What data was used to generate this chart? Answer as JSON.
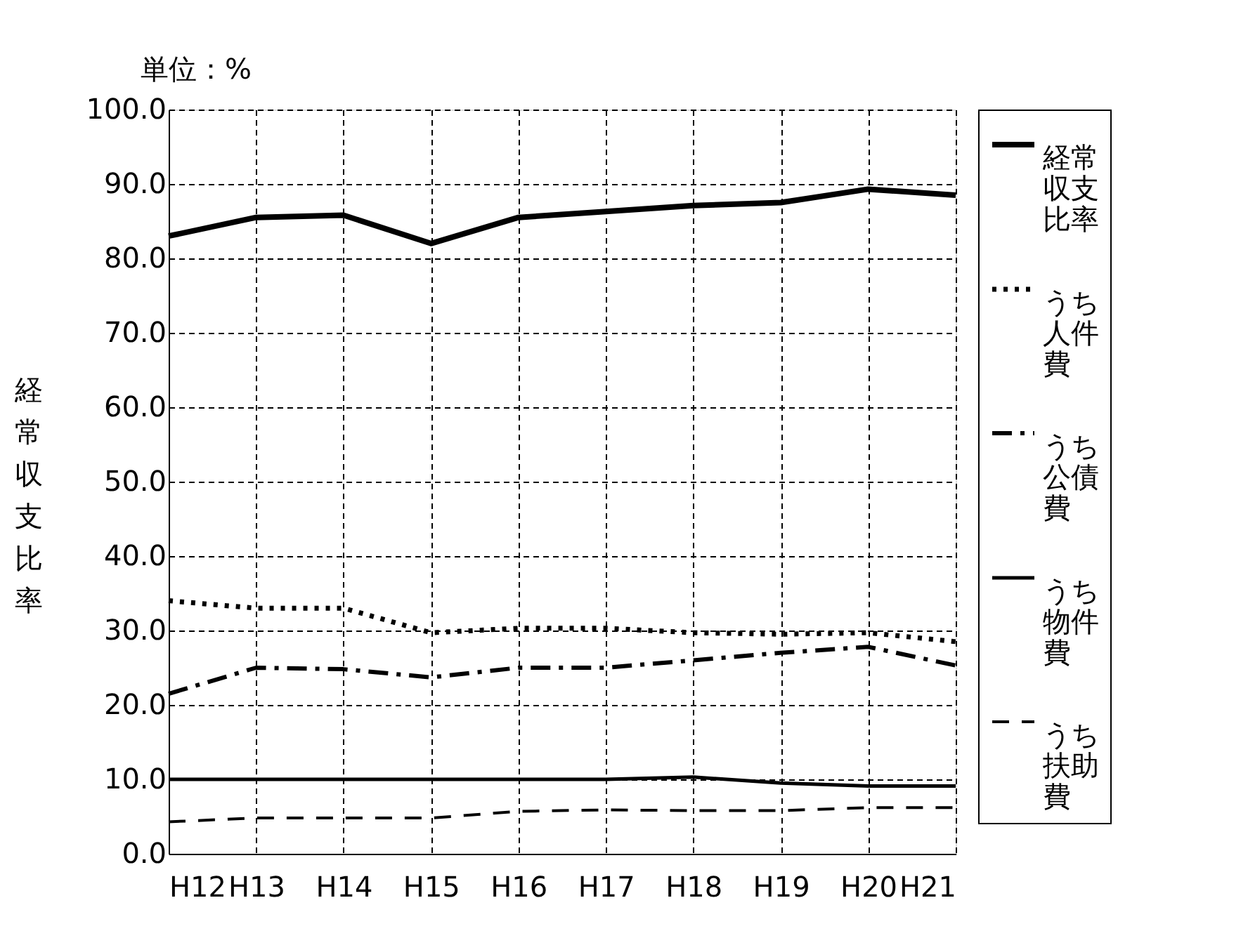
{
  "chart_data": {
    "type": "line",
    "ylabel": "経常収支比率",
    "annotations": [
      "単位：%"
    ],
    "categories": [
      "H12",
      "H13",
      "H14",
      "H15",
      "H16",
      "H17",
      "H18",
      "H19",
      "H20",
      "H21"
    ],
    "series": [
      {
        "name": "経常収支比率",
        "color": "#000000",
        "line_style": "solid",
        "values": [
          83.0,
          85.5,
          85.8,
          82.0,
          85.5,
          86.3,
          87.1,
          87.5,
          89.3,
          88.5
        ]
      },
      {
        "name": "うち人件費",
        "color": "#000000",
        "line_style": "dotted",
        "values": [
          34.0,
          33.0,
          33.0,
          29.7,
          30.3,
          30.3,
          29.7,
          29.5,
          29.7,
          28.5
        ]
      },
      {
        "name": "うち公債費",
        "color": "#000000",
        "line_style": "dashdot",
        "values": [
          21.5,
          25.0,
          24.8,
          23.7,
          25.0,
          25.0,
          26.0,
          27.0,
          27.8,
          25.3
        ]
      },
      {
        "name": "うち物件費",
        "color": "#000000",
        "line_style": "solid",
        "values": [
          10.0,
          10.0,
          10.0,
          10.0,
          10.0,
          10.0,
          10.3,
          9.5,
          9.1,
          9.1
        ]
      },
      {
        "name": "うち扶助費",
        "color": "#000000",
        "line_style": "dashed",
        "values": [
          4.3,
          4.8,
          4.8,
          4.8,
          5.7,
          5.9,
          5.8,
          5.8,
          6.2,
          6.2
        ]
      }
    ],
    "ylim": [
      0,
      100
    ],
    "yticks": [
      {
        "value": 0,
        "label": "0.0"
      },
      {
        "value": 10,
        "label": "10.0"
      },
      {
        "value": 20,
        "label": "20.0"
      },
      {
        "value": 30,
        "label": "30.0"
      },
      {
        "value": 40,
        "label": "40.0"
      },
      {
        "value": 50,
        "label": "50.0"
      },
      {
        "value": 60,
        "label": "60.0"
      },
      {
        "value": 70,
        "label": "70.0"
      },
      {
        "value": 80,
        "label": "80.0"
      },
      {
        "value": 90,
        "label": "90.0"
      },
      {
        "value": 100,
        "label": "100.0"
      }
    ],
    "grid": true,
    "legend": "right",
    "marker": "none"
  }
}
